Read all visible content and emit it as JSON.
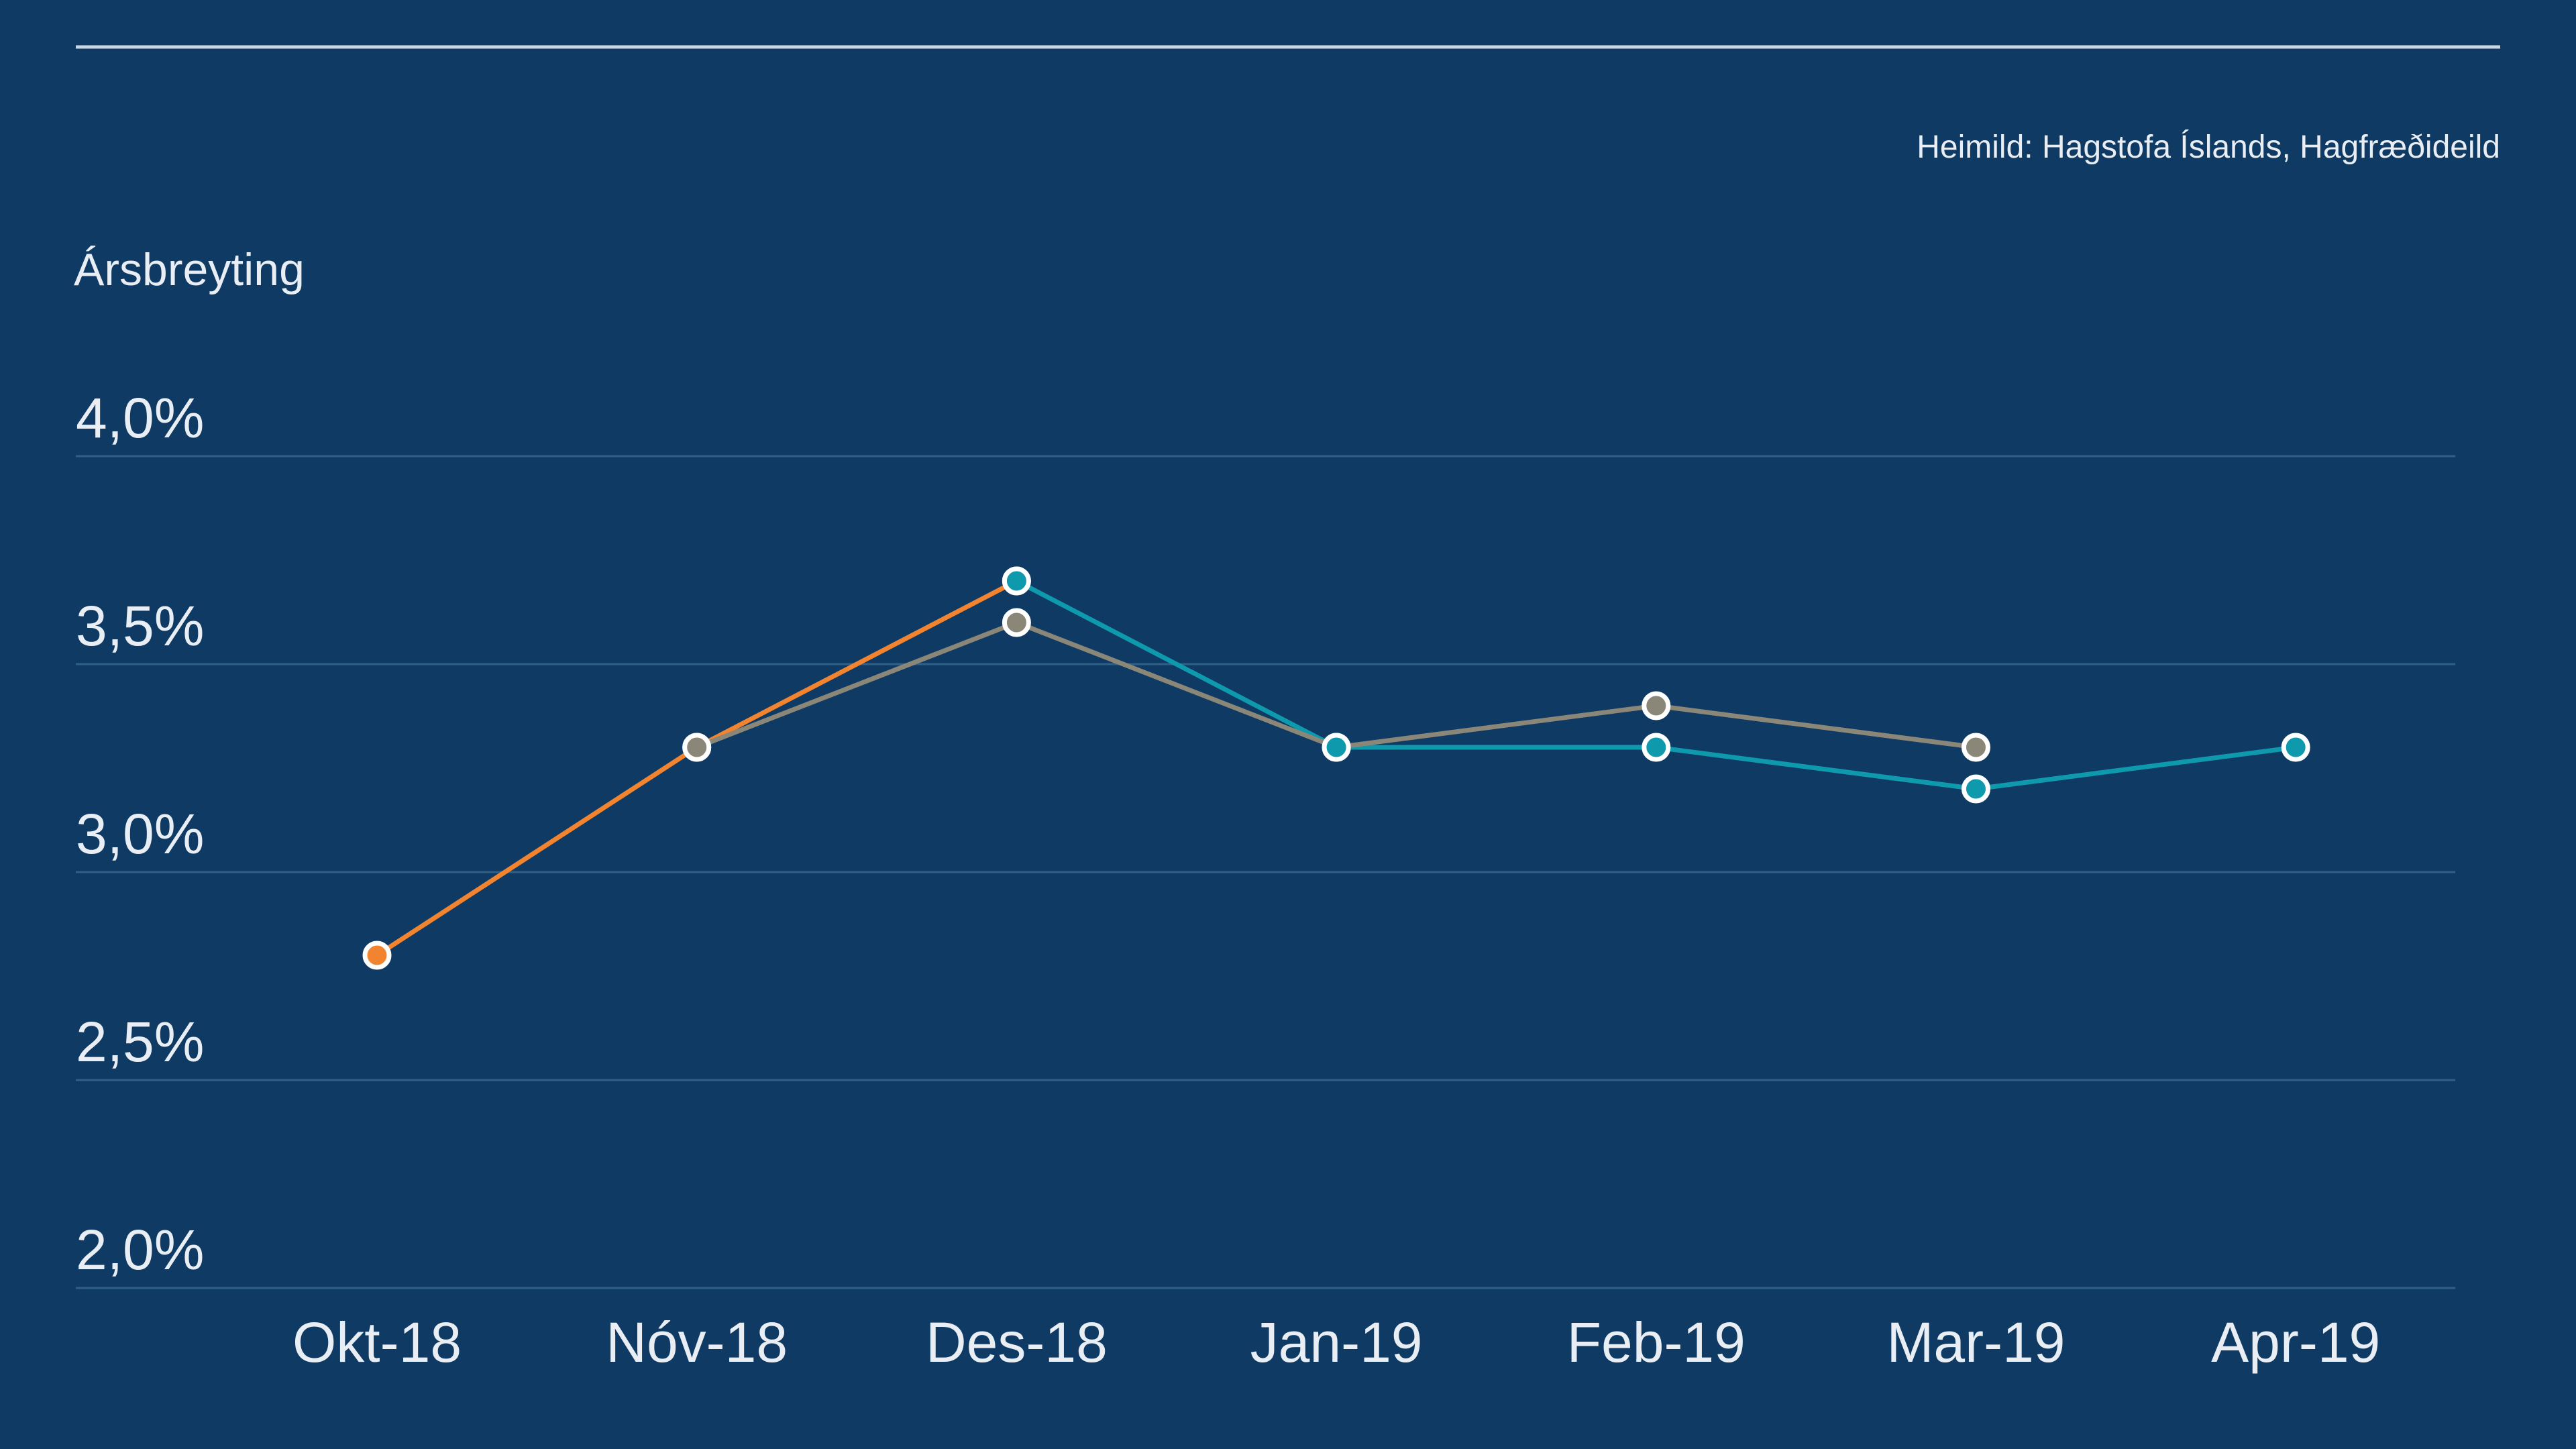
{
  "source": "Heimild: Hagstofa Íslands, Hagfræðideild",
  "chart_data": {
    "type": "line",
    "ylabel": "Ársbreyting",
    "xlabel": "",
    "title": "",
    "ylim": [
      2.0,
      4.0
    ],
    "y_ticks": [
      2.0,
      2.5,
      3.0,
      3.5,
      4.0
    ],
    "y_tick_labels": [
      "2,0%",
      "2,5%",
      "3,0%",
      "3,5%",
      "4,0%"
    ],
    "categories": [
      "Okt-18",
      "Nóv-18",
      "Des-18",
      "Jan-19",
      "Feb-19",
      "Mar-19",
      "Apr-19"
    ],
    "grid": true,
    "legend": "none",
    "series": [
      {
        "color": "#f28430",
        "values": [
          2.8,
          3.3,
          3.7,
          null,
          null,
          null,
          null
        ]
      },
      {
        "color": "#0e99ad",
        "values": [
          null,
          null,
          3.7,
          3.3,
          3.3,
          3.2,
          3.3
        ]
      },
      {
        "color": "#8a8778",
        "values": [
          null,
          3.3,
          3.6,
          3.3,
          3.4,
          3.3,
          null
        ]
      }
    ],
    "colors": {
      "background": "#0f3a63",
      "gridline": "#2f6088",
      "text": "#e9eef4",
      "rule": "#c9d6e3",
      "marker_stroke": "#ffffff"
    }
  }
}
